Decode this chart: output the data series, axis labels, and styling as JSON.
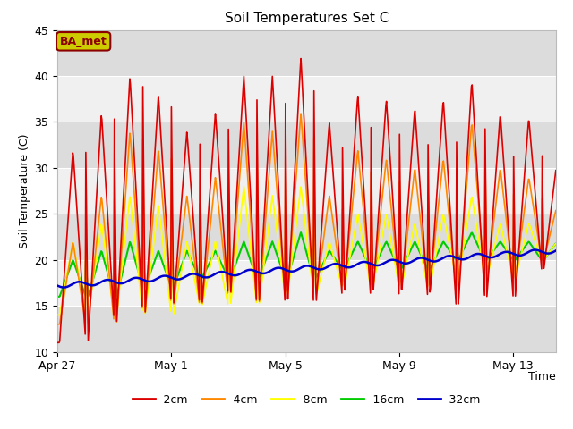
{
  "title": "Soil Temperatures Set C",
  "xlabel": "Time",
  "ylabel": "Soil Temperature (C)",
  "ylim": [
    10,
    45
  ],
  "xlim_days": [
    0,
    17.5
  ],
  "x_ticks_days": [
    0,
    4,
    8,
    12,
    16
  ],
  "x_tick_labels": [
    "Apr 27",
    "May 1",
    "May 5",
    "May 9",
    "May 13"
  ],
  "y_ticks": [
    10,
    15,
    20,
    25,
    30,
    35,
    40,
    45
  ],
  "plot_bg_dark": "#dcdcdc",
  "plot_bg_light": "#f0f0f0",
  "annotation_label": "BA_met",
  "annotation_bg": "#cccc00",
  "annotation_border": "#8b0000",
  "lines": {
    "neg2cm": {
      "color": "#dd0000",
      "label": "-2cm",
      "lw": 1.2
    },
    "neg4cm": {
      "color": "#ff8800",
      "label": "-4cm",
      "lw": 1.2
    },
    "neg8cm": {
      "color": "#ffff00",
      "label": "-8cm",
      "lw": 1.2
    },
    "neg16cm": {
      "color": "#00cc00",
      "label": "-16cm",
      "lw": 1.5
    },
    "neg32cm": {
      "color": "#0000cc",
      "label": "-32cm",
      "lw": 1.8
    }
  },
  "peaks_2cm": [
    32,
    36,
    40,
    38,
    34,
    36,
    40,
    40,
    42,
    35,
    38,
    37.5,
    36.5,
    37.5,
    39.5,
    36,
    35.5,
    31
  ],
  "troughs_2cm": [
    11,
    11,
    13,
    14,
    15,
    15,
    16,
    15,
    15,
    15,
    16,
    16,
    16,
    16,
    15,
    16,
    16,
    19
  ],
  "peaks_4cm": [
    22,
    27,
    34,
    32,
    27,
    29,
    35,
    34,
    36,
    27,
    32,
    31,
    30,
    31,
    35,
    30,
    29,
    26
  ],
  "troughs_4cm": [
    13,
    13,
    13,
    14,
    15,
    15,
    16,
    15,
    16,
    16,
    17,
    17,
    17,
    17,
    17,
    18,
    18,
    20
  ],
  "peaks_8cm": [
    22,
    24,
    27,
    26,
    22,
    22,
    28,
    27,
    28,
    22,
    25,
    25,
    24,
    25,
    27,
    24,
    24,
    22
  ],
  "troughs_8cm": [
    14,
    14,
    14,
    14,
    14,
    15,
    15,
    15,
    16,
    16,
    17,
    17,
    17,
    17,
    18,
    18,
    18,
    20
  ],
  "peaks_16cm": [
    20,
    21,
    22,
    21,
    21,
    21,
    22,
    22,
    23,
    21,
    22,
    22,
    22,
    22,
    23,
    22,
    22,
    22
  ],
  "troughs_16cm": [
    16,
    16,
    16,
    17,
    17,
    18,
    18,
    18,
    18,
    18,
    19,
    19,
    19,
    19,
    20,
    20,
    20,
    20
  ]
}
